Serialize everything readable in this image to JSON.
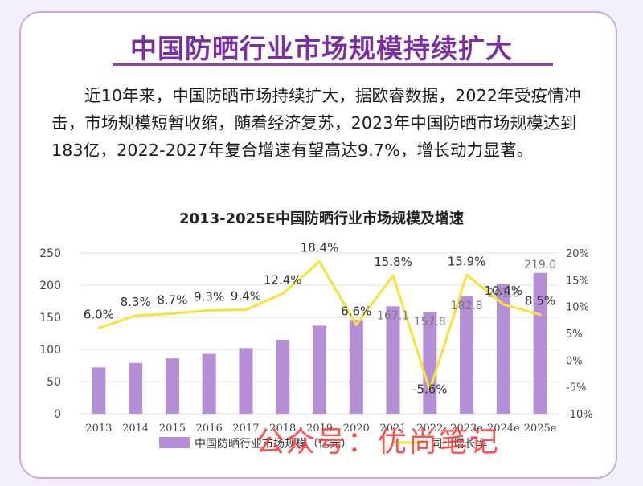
{
  "header": {
    "title": "中国防晒行业市场规模持续扩大",
    "intro": "近10年来，中国防晒市场持续扩大，据欧睿数据，2022年受疫情冲击，市场规模短暂收缩，随着经济复苏，2023年中国防晒市场规模达到183亿，2022-2027年复合增速有望高达9.7%，增长动力显著。"
  },
  "watermark": "公众号：优尚笔记",
  "colors": {
    "bar": "#b48fd6",
    "line": "#f7e23c",
    "title": "#7a2fa0"
  },
  "chart_data": {
    "type": "bar",
    "title": "2013-2025E中国防晒行业市场规模及增速",
    "categories": [
      "2013",
      "2014",
      "2015",
      "2016",
      "2017",
      "2018",
      "2019",
      "2020",
      "2021",
      "2022",
      "2023e",
      "2024e",
      "2025e"
    ],
    "series": [
      {
        "name": "中国防晒行业市场规模（亿元）",
        "type": "bar",
        "axis": "left",
        "values": [
          72,
          79,
          86,
          93,
          102,
          115,
          137,
          146,
          167.1,
          157.8,
          182.8,
          201.8,
          219.0
        ],
        "labels": [
          "",
          "",
          "",
          "",
          "",
          "",
          "",
          "",
          "167.1",
          "157.8",
          "182.8",
          "201.8",
          "219.0"
        ]
      },
      {
        "name": "同比增长率",
        "type": "line",
        "axis": "right",
        "values": [
          6.0,
          8.3,
          8.7,
          9.3,
          9.4,
          12.4,
          18.4,
          6.6,
          15.8,
          -5.6,
          15.9,
          10.4,
          8.5
        ],
        "labels": [
          "6.0%",
          "8.3%",
          "8.7%",
          "9.3%",
          "9.4%",
          "12.4%",
          "18.4%",
          "6.6%",
          "15.8%",
          "-5.6%",
          "15.9%",
          "10.4%",
          "8.5%"
        ]
      }
    ],
    "y_left": {
      "min": 0,
      "max": 250,
      "ticks": [
        "0",
        "50",
        "100",
        "150",
        "200",
        "250"
      ]
    },
    "y_right": {
      "min": -10,
      "max": 20,
      "ticks": [
        "-10%",
        "-5%",
        "0%",
        "5%",
        "10%",
        "15%",
        "20%"
      ]
    },
    "grid": true,
    "legend": "bottom"
  }
}
